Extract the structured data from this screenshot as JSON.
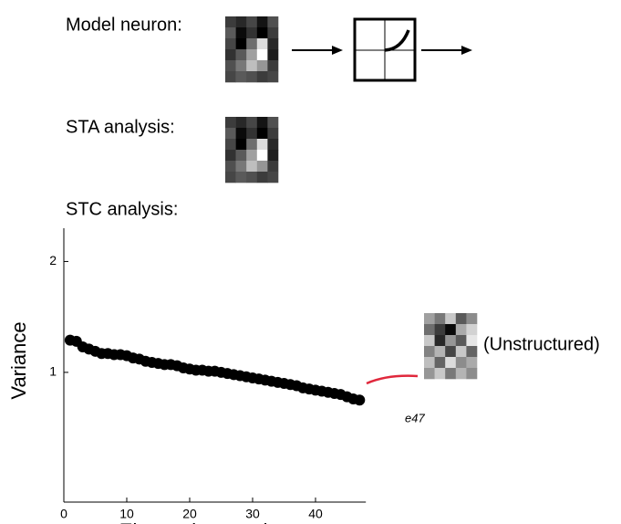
{
  "panels": [
    "Model neuron:",
    "STA analysis:",
    "STC analysis:"
  ],
  "chart_data": {
    "type": "scatter",
    "xlabel": "Eigenvalue number",
    "ylabel": "Variance",
    "x": [
      1,
      2,
      3,
      4,
      5,
      6,
      7,
      8,
      9,
      10,
      11,
      12,
      13,
      14,
      15,
      16,
      17,
      18,
      19,
      20,
      21,
      22,
      23,
      24,
      25,
      26,
      27,
      28,
      29,
      30,
      31,
      32,
      33,
      34,
      35,
      36,
      37,
      38,
      39,
      40,
      41,
      42,
      43,
      44,
      45,
      46,
      47
    ],
    "values": [
      1.29,
      1.28,
      1.23,
      1.21,
      1.19,
      1.17,
      1.17,
      1.16,
      1.16,
      1.15,
      1.13,
      1.12,
      1.1,
      1.09,
      1.08,
      1.07,
      1.07,
      1.06,
      1.04,
      1.03,
      1.02,
      1.02,
      1.01,
      1.01,
      1.0,
      0.99,
      0.98,
      0.97,
      0.96,
      0.95,
      0.94,
      0.93,
      0.92,
      0.91,
      0.9,
      0.89,
      0.88,
      0.86,
      0.85,
      0.84,
      0.83,
      0.82,
      0.81,
      0.8,
      0.78,
      0.76,
      0.75
    ],
    "color": "#000000",
    "xlim": [
      0,
      48
    ],
    "ylim": [
      -0.17,
      2.3
    ],
    "xticks": [
      0,
      10,
      20,
      30,
      40
    ],
    "yticks": [
      1,
      2
    ],
    "annotation": "e47",
    "annotation_color": "#e0283c",
    "image_label": "(Unstructured)"
  }
}
